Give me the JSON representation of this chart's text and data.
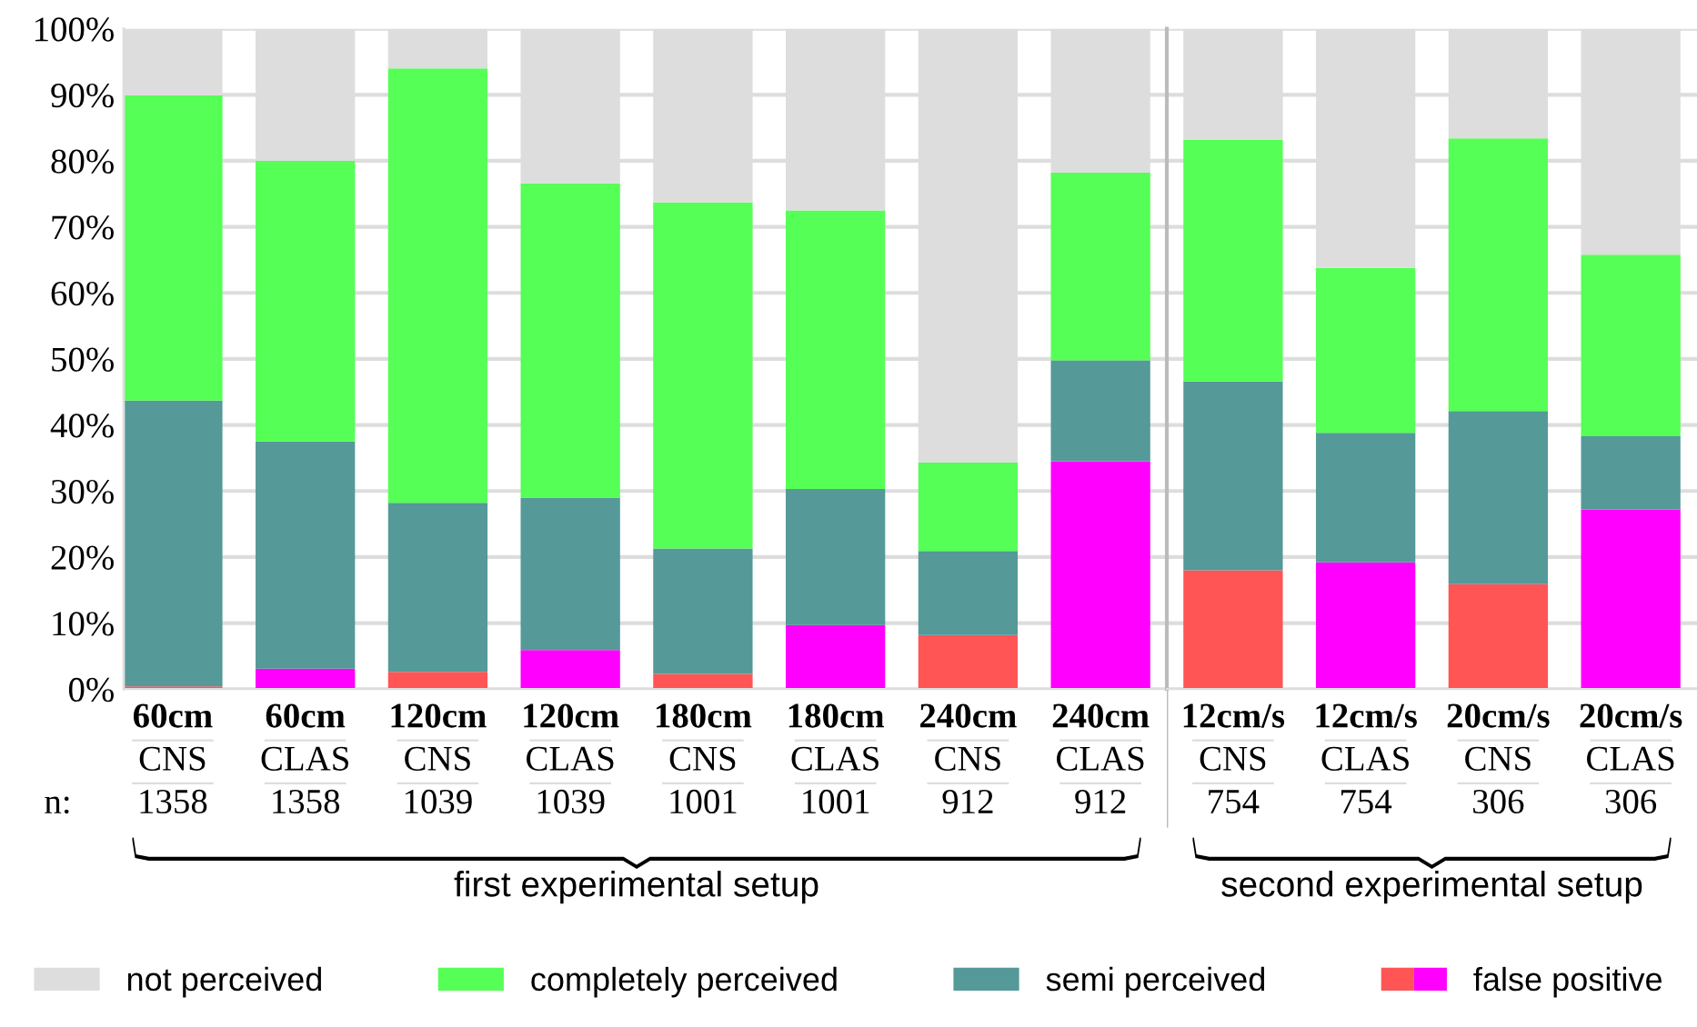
{
  "chart_data": [
    {
      "type": "bar",
      "stacked": true,
      "categories": [
        "60cm\nCNS\n1358",
        "60cm\nCLAS\n1358",
        "120cm\nCNS\n1039",
        "120cm\nCLAS\n1039",
        "180cm\nCNS\n1001",
        "180cm\nCLAS\n1001",
        "240cm\nCNS\n912",
        "240cm\nCLAS\n912"
      ],
      "series": [
        {
          "name": "false positive",
          "colors": [
            "#ff5555",
            "#ff00ff",
            "#ff5555",
            "#ff00ff",
            "#ff5555",
            "#ff00ff",
            "#ff5555",
            "#ff00ff"
          ],
          "values": [
            0.4,
            3.1,
            2.6,
            5.9,
            2.3,
            9.7,
            8.2,
            34.5
          ]
        },
        {
          "name": "semi perceived",
          "color": "#559999",
          "values": [
            43.3,
            34.4,
            25.6,
            23.1,
            19.0,
            20.6,
            12.7,
            15.3
          ]
        },
        {
          "name": "completely perceived",
          "color": "#55ff55",
          "values": [
            46.2,
            42.5,
            65.8,
            47.6,
            52.4,
            42.2,
            13.4,
            28.4
          ]
        },
        {
          "name": "not perceived",
          "color": "#dddddd",
          "values": [
            10.1,
            20.0,
            6.0,
            23.4,
            26.3,
            27.5,
            65.7,
            21.8
          ]
        }
      ],
      "ylim": [
        0,
        100
      ],
      "yticks": [
        {
          "value": 0,
          "label": "0%"
        },
        {
          "value": 10,
          "label": "10%"
        },
        {
          "value": 20,
          "label": "20%"
        },
        {
          "value": 30,
          "label": "30%"
        },
        {
          "value": 40,
          "label": "40%"
        },
        {
          "value": 50,
          "label": "50%"
        },
        {
          "value": 60,
          "label": "60%"
        },
        {
          "value": 70,
          "label": "70%"
        },
        {
          "value": 80,
          "label": "80%"
        },
        {
          "value": 90,
          "label": "90%"
        },
        {
          "value": 100,
          "label": "100%"
        }
      ],
      "grid": "y",
      "legend": "bottom",
      "annotations": [
        "n:",
        "first experimental setup"
      ]
    },
    {
      "type": "bar",
      "stacked": true,
      "categories": [
        "12cm/s\nCNS\n754",
        "12cm/s\nCLAS\n754",
        "20cm/s\nCNS\n306",
        "20cm/s\nCLAS\n306"
      ],
      "series": [
        {
          "colors": [
            "#ff5555",
            "#ff00ff",
            "#ff5555",
            "#ff00ff"
          ],
          "values": [
            18.0,
            19.2,
            15.9,
            27.2
          ]
        },
        {
          "color": "#559999",
          "values": [
            28.6,
            19.6,
            26.2,
            11.1
          ]
        },
        {
          "color": "#55ff55",
          "values": [
            36.6,
            25.0,
            41.3,
            27.5
          ]
        },
        {
          "color": "#dddddd",
          "values": [
            16.8,
            36.2,
            16.6,
            34.2
          ]
        }
      ],
      "ylim": [
        0,
        100
      ],
      "yticks": [
        {
          "value": 0,
          "label": null
        },
        {
          "value": 10,
          "label": null
        },
        {
          "value": 20,
          "label": null
        },
        {
          "value": 30,
          "label": null
        },
        {
          "value": 40,
          "label": null
        },
        {
          "value": 50,
          "label": null
        },
        {
          "value": 60,
          "label": null
        },
        {
          "value": 70,
          "label": null
        },
        {
          "value": 80,
          "label": null
        },
        {
          "value": 90,
          "label": null
        },
        {
          "value": 100,
          "label": null
        }
      ],
      "tick_labels": "x",
      "grid": "y",
      "annotations": [
        "second experimental setup"
      ]
    }
  ]
}
